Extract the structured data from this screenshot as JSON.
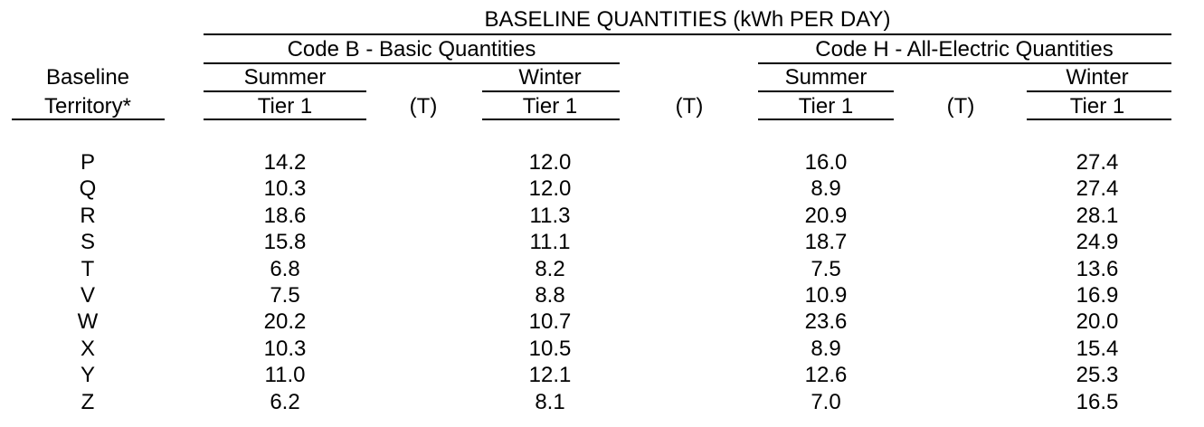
{
  "header": {
    "title": "BASELINE QUANTITIES (kWh PER DAY)",
    "group_b": "Code B - Basic Quantities",
    "group_h": "Code H - All-Electric Quantities",
    "territory_line1": "Baseline",
    "territory_line2": "Territory*",
    "season_b_summer": "Summer",
    "season_b_winter": "Winter",
    "season_h_summer": "Summer",
    "season_h_winter": "Winter",
    "tier_b_summer": "Tier 1",
    "t_1": "(T)",
    "tier_b_winter": "Tier 1",
    "t_2": "(T)",
    "tier_h_summer": "Tier 1",
    "t_3": "(T)",
    "tier_h_winter": "Tier 1"
  },
  "table": {
    "rows": [
      [
        "P",
        "14.2",
        "12.0",
        "16.0",
        "27.4"
      ],
      [
        "Q",
        "10.3",
        "12.0",
        "8.9",
        "27.4"
      ],
      [
        "R",
        "18.6",
        "11.3",
        "20.9",
        "28.1"
      ],
      [
        "S",
        "15.8",
        "11.1",
        "18.7",
        "24.9"
      ],
      [
        "T",
        "6.8",
        "8.2",
        "7.5",
        "13.6"
      ],
      [
        "V",
        "7.5",
        "8.8",
        "10.9",
        "16.9"
      ],
      [
        "W",
        "20.2",
        "10.7",
        "23.6",
        "20.0"
      ],
      [
        "X",
        "10.3",
        "10.5",
        "8.9",
        "15.4"
      ],
      [
        "Y",
        "11.0",
        "12.1",
        "12.6",
        "25.3"
      ],
      [
        "Z",
        "6.2",
        "8.1",
        "7.0",
        "16.5"
      ]
    ]
  }
}
